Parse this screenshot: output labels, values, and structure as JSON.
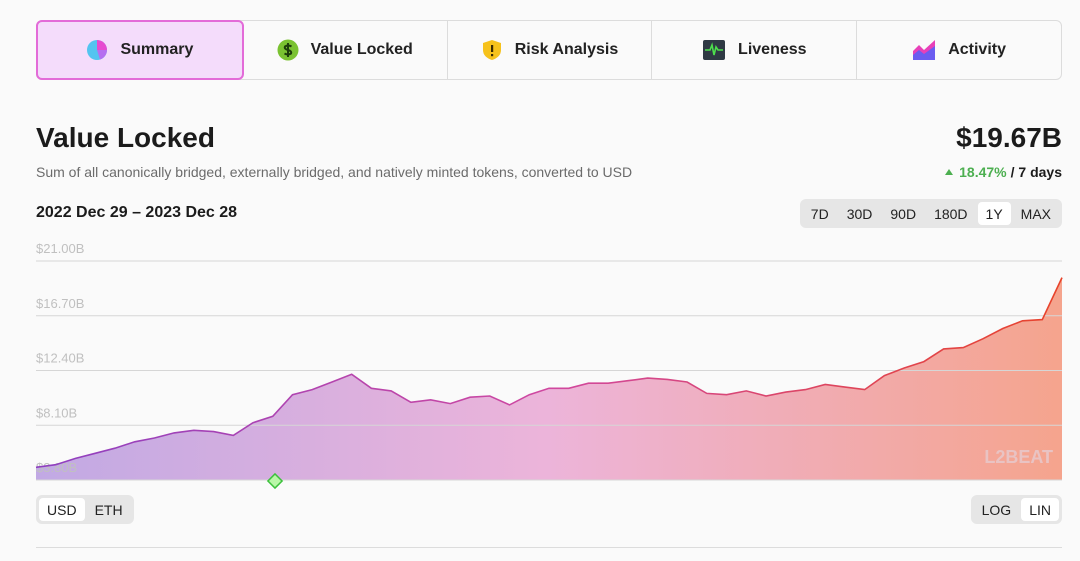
{
  "tabs": [
    "Summary",
    "Value Locked",
    "Risk Analysis",
    "Liveness",
    "Activity"
  ],
  "selected_tab": "Summary",
  "header": {
    "title": "Value Locked",
    "subtitle": "Sum of all canonically bridged, externally bridged, and natively minted tokens, converted to USD",
    "total": "$19.67B",
    "change": "18.47%",
    "period": "/ 7 days",
    "date_range": "2022 Dec 29 – 2023 Dec 28"
  },
  "range_buttons": [
    "7D",
    "30D",
    "90D",
    "180D",
    "1Y",
    "MAX"
  ],
  "selected_range": "1Y",
  "unit_buttons": [
    "USD",
    "ETH"
  ],
  "selected_unit": "USD",
  "scale_buttons": [
    "LOG",
    "LIN"
  ],
  "selected_scale": "LIN",
  "watermark": "L2BEAT",
  "chart_data": {
    "type": "area",
    "values": [
      4.8,
      5.0,
      5.5,
      5.9,
      6.3,
      6.8,
      7.1,
      7.5,
      7.7,
      7.6,
      7.3,
      8.3,
      8.8,
      10.5,
      10.9,
      11.5,
      12.1,
      11.0,
      10.8,
      9.9,
      10.1,
      9.8,
      10.3,
      10.4,
      9.7,
      10.5,
      11.0,
      11.0,
      11.4,
      11.4,
      11.6,
      11.8,
      11.7,
      11.5,
      10.6,
      10.5,
      10.8,
      10.4,
      10.7,
      10.9,
      11.3,
      11.1,
      10.9,
      12.0,
      12.6,
      13.1,
      14.1,
      14.2,
      14.9,
      15.7,
      16.3,
      16.4,
      19.7
    ],
    "ylim": [
      3.8,
      21.0
    ],
    "yticks": [
      {
        "value": 3.8,
        "label": "$3.80B"
      },
      {
        "value": 8.1,
        "label": "$8.10B"
      },
      {
        "value": 12.4,
        "label": "$12.40B"
      },
      {
        "value": 16.7,
        "label": "$16.70B"
      },
      {
        "value": 21.0,
        "label": "$21.00B"
      }
    ],
    "grid": true
  }
}
